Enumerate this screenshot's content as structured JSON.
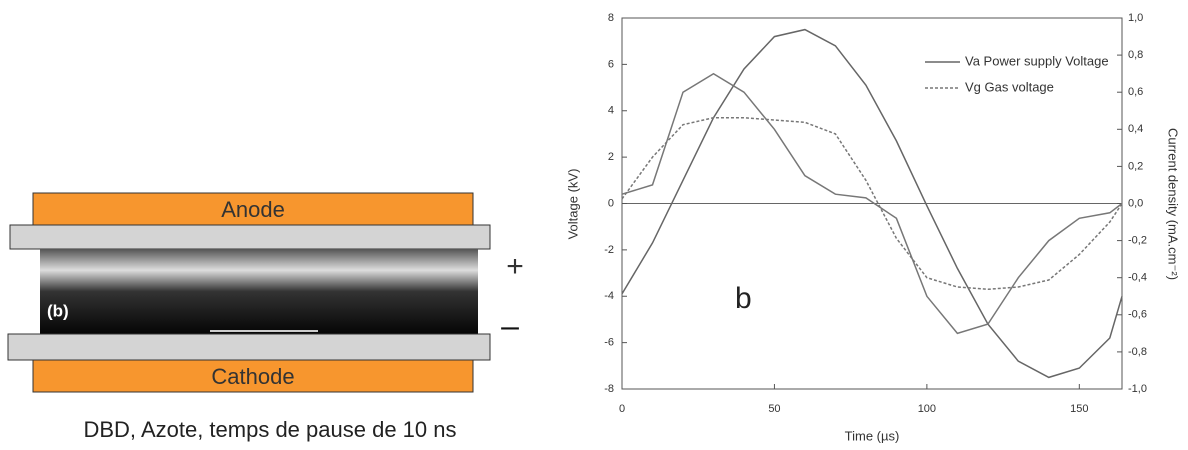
{
  "diagram": {
    "anode": "Anode",
    "cathode": "Cathode",
    "panel_label": "(b)",
    "plus": "+",
    "minus": "–",
    "caption": "DBD, Azote, temps de pause de 10 ns"
  },
  "chart_data": {
    "type": "line",
    "annotation": "b",
    "xlabel": "Time (µs)",
    "ylabel": "Voltage (kV)",
    "y2label": "Current density (mA.cm⁻²)",
    "x": [
      0,
      10,
      20,
      30,
      40,
      50,
      60,
      70,
      80,
      90,
      100,
      110,
      120,
      130,
      140,
      150,
      160,
      164
    ],
    "series": [
      {
        "name": "Va Power supply Voltage",
        "color": "#666666",
        "dash": false,
        "values": [
          -3.9,
          -1.7,
          1.0,
          3.7,
          5.8,
          7.2,
          7.5,
          6.8,
          5.1,
          2.7,
          -0.1,
          -2.8,
          -5.2,
          -6.8,
          -7.5,
          -7.1,
          -5.8,
          -4.0
        ]
      },
      {
        "name": "Vg Gas voltage",
        "color": "#777777",
        "dash": true,
        "values": [
          0.2,
          2.0,
          3.4,
          3.7,
          3.7,
          3.6,
          3.5,
          3.0,
          1.0,
          -1.5,
          -3.2,
          -3.6,
          -3.7,
          -3.6,
          -3.3,
          -2.2,
          -0.8,
          0
        ]
      },
      {
        "color": "#777777",
        "dash": false,
        "axis": "y2",
        "values": [
          0.05,
          0.1,
          0.6,
          0.7,
          0.6,
          0.4,
          0.15,
          0.05,
          0.03,
          -0.08,
          -0.5,
          -0.7,
          -0.65,
          -0.4,
          -0.2,
          -0.08,
          -0.05,
          0
        ]
      }
    ],
    "xlim": [
      0,
      164
    ],
    "xticks": [
      0,
      50,
      100,
      150
    ],
    "ylim": [
      -8,
      8
    ],
    "yticks": [
      -8,
      -6,
      -4,
      -2,
      0,
      2,
      4,
      6,
      8
    ],
    "y2lim": [
      -1,
      1
    ],
    "y2ticks": [
      {
        "value": -1,
        "label": "-1,0"
      },
      {
        "value": -0.8,
        "label": "-0,8"
      },
      {
        "value": -0.6,
        "label": "-0,6"
      },
      {
        "value": -0.4,
        "label": "-0,4"
      },
      {
        "value": -0.2,
        "label": "-0,2"
      },
      {
        "value": 0,
        "label": "0,0"
      },
      {
        "value": 0.2,
        "label": "0,2"
      },
      {
        "value": 0.4,
        "label": "0,4"
      },
      {
        "value": 0.6,
        "label": "0,6"
      },
      {
        "value": 0.8,
        "label": "0,8"
      },
      {
        "value": 1,
        "label": "1,0"
      }
    ]
  }
}
